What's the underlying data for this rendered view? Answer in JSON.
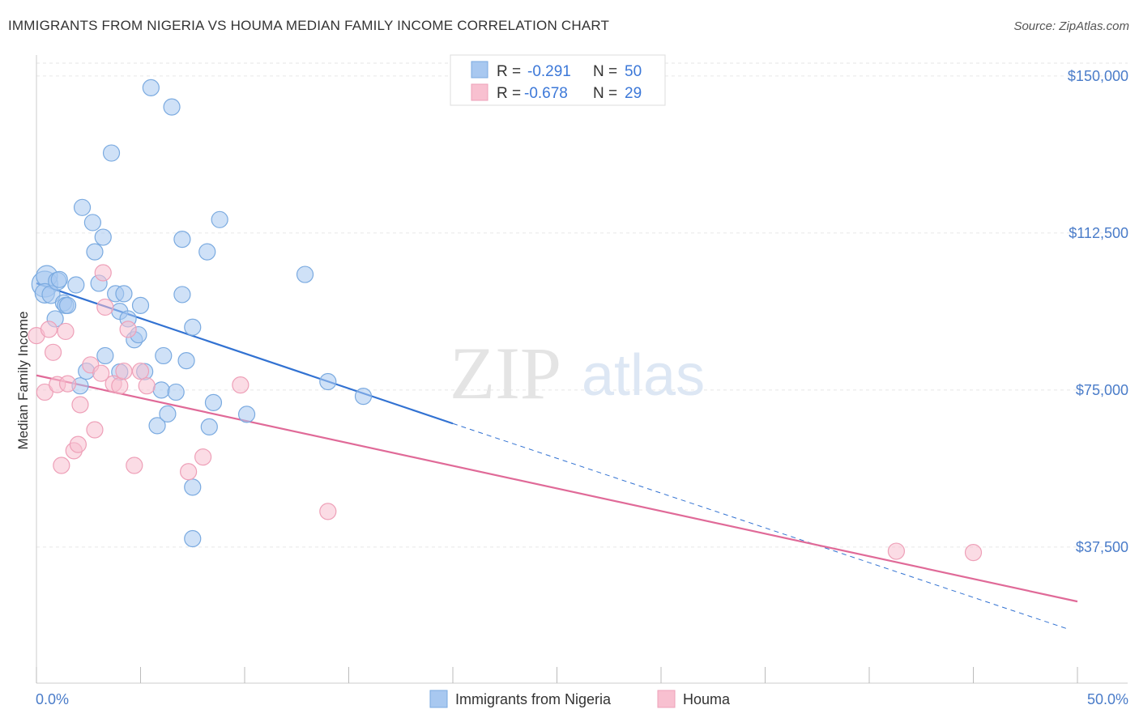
{
  "header": {
    "title": "IMMIGRANTS FROM NIGERIA VS HOUMA MEDIAN FAMILY INCOME CORRELATION CHART",
    "source": "Source: ZipAtlas.com"
  },
  "watermark": {
    "zip": "ZIP",
    "atlas": "atlas"
  },
  "legend": {
    "r_label": "R =",
    "n_label": "N =",
    "series": [
      {
        "r": "-0.291",
        "n": "50"
      },
      {
        "r": "-0.678",
        "n": "29"
      }
    ]
  },
  "chart_data": {
    "type": "scatter",
    "title": "IMMIGRANTS FROM NIGERIA VS HOUMA MEDIAN FAMILY INCOME CORRELATION CHART",
    "xlabel": "",
    "ylabel": "Median Family Income",
    "xlim": [
      0,
      50
    ],
    "ylim": [
      5000,
      155000
    ],
    "x_tick_labels": [
      "0.0%",
      "50.0%"
    ],
    "y_ticks": [
      37500,
      75000,
      112500,
      150000
    ],
    "y_tick_labels": [
      "$37,500",
      "$75,000",
      "$112,500",
      "$150,000"
    ],
    "grid": true,
    "legend_position": "top-center",
    "series": [
      {
        "name": "Immigrants from Nigeria",
        "color": "#a8c8f0",
        "stroke": "#7aaae0",
        "line_color": "#3272d2",
        "trend": {
          "x0": 0,
          "y0": 100500,
          "x1": 20,
          "y1": 67000,
          "dash_to_x": 49.5,
          "dash_to_y": 18000
        },
        "points": [
          [
            0.4,
            100.3
          ],
          [
            0.5,
            102.2
          ],
          [
            0.4,
            98.1
          ],
          [
            0.7,
            97.8
          ],
          [
            1.0,
            101.0
          ],
          [
            1.1,
            101.4
          ],
          [
            1.3,
            95.8
          ],
          [
            1.4,
            95.2
          ],
          [
            1.5,
            95.2
          ],
          [
            1.9,
            100.1
          ],
          [
            0.9,
            92.0
          ],
          [
            2.2,
            118.6
          ],
          [
            2.7,
            115.0
          ],
          [
            2.8,
            108.0
          ],
          [
            3.2,
            111.5
          ],
          [
            3.0,
            100.5
          ],
          [
            3.6,
            131.6
          ],
          [
            3.8,
            98.0
          ],
          [
            4.2,
            98.0
          ],
          [
            4.0,
            93.8
          ],
          [
            4.4,
            92.0
          ],
          [
            4.7,
            87.0
          ],
          [
            4.9,
            88.2
          ],
          [
            5.0,
            95.2
          ],
          [
            5.5,
            147.2
          ],
          [
            6.5,
            142.6
          ],
          [
            7.0,
            97.8
          ],
          [
            7.0,
            111.0
          ],
          [
            7.5,
            90.0
          ],
          [
            8.2,
            108.0
          ],
          [
            8.8,
            115.7
          ],
          [
            2.1,
            76.0
          ],
          [
            2.4,
            79.5
          ],
          [
            3.3,
            83.2
          ],
          [
            4.0,
            79.3
          ],
          [
            5.2,
            79.4
          ],
          [
            5.8,
            66.5
          ],
          [
            6.0,
            75.0
          ],
          [
            6.3,
            69.3
          ],
          [
            6.1,
            83.2
          ],
          [
            6.7,
            74.5
          ],
          [
            7.2,
            82.0
          ],
          [
            8.3,
            66.2
          ],
          [
            8.5,
            72.0
          ],
          [
            10.1,
            69.2
          ],
          [
            7.5,
            51.8
          ],
          [
            7.5,
            39.5
          ],
          [
            12.9,
            102.6
          ],
          [
            14.0,
            77.0
          ],
          [
            15.7,
            73.5
          ]
        ],
        "radii": [
          16,
          13,
          12,
          11,
          11,
          10,
          10,
          10,
          10,
          10,
          10,
          10,
          10,
          10,
          10,
          10,
          10,
          10,
          10,
          10,
          10,
          10,
          10,
          10,
          10,
          10,
          10,
          10,
          10,
          10,
          10,
          10,
          10,
          10,
          10,
          10,
          10,
          10,
          10,
          10,
          10,
          10,
          10,
          10,
          10,
          10,
          10,
          10,
          10,
          10
        ]
      },
      {
        "name": "Houma",
        "color": "#f8c0d0",
        "stroke": "#eea0b8",
        "line_color": "#e06a98",
        "trend": {
          "x0": 0,
          "y0": 78500,
          "x1": 50,
          "y1": 24500
        },
        "points": [
          [
            0.0,
            88.0
          ],
          [
            0.4,
            74.5
          ],
          [
            0.6,
            89.5
          ],
          [
            0.8,
            84.0
          ],
          [
            1.0,
            76.3
          ],
          [
            1.2,
            57.0
          ],
          [
            1.4,
            89.0
          ],
          [
            1.5,
            76.5
          ],
          [
            1.8,
            60.5
          ],
          [
            2.0,
            62.0
          ],
          [
            2.1,
            71.5
          ],
          [
            2.6,
            81.0
          ],
          [
            2.8,
            65.5
          ],
          [
            3.1,
            79.0
          ],
          [
            3.2,
            103.0
          ],
          [
            3.3,
            94.8
          ],
          [
            3.7,
            76.5
          ],
          [
            4.0,
            76.0
          ],
          [
            4.2,
            79.5
          ],
          [
            4.4,
            89.5
          ],
          [
            4.7,
            57.0
          ],
          [
            5.0,
            79.5
          ],
          [
            5.3,
            76.0
          ],
          [
            7.3,
            55.5
          ],
          [
            8.0,
            59.0
          ],
          [
            9.8,
            76.2
          ],
          [
            14.0,
            46.0
          ],
          [
            41.3,
            36.5
          ],
          [
            45.0,
            36.2
          ]
        ],
        "radii": [
          10,
          10,
          10,
          10,
          10,
          10,
          10,
          10,
          10,
          10,
          10,
          10,
          10,
          10,
          10,
          10,
          10,
          10,
          10,
          10,
          10,
          10,
          10,
          10,
          10,
          10,
          10,
          10,
          10
        ]
      }
    ]
  }
}
